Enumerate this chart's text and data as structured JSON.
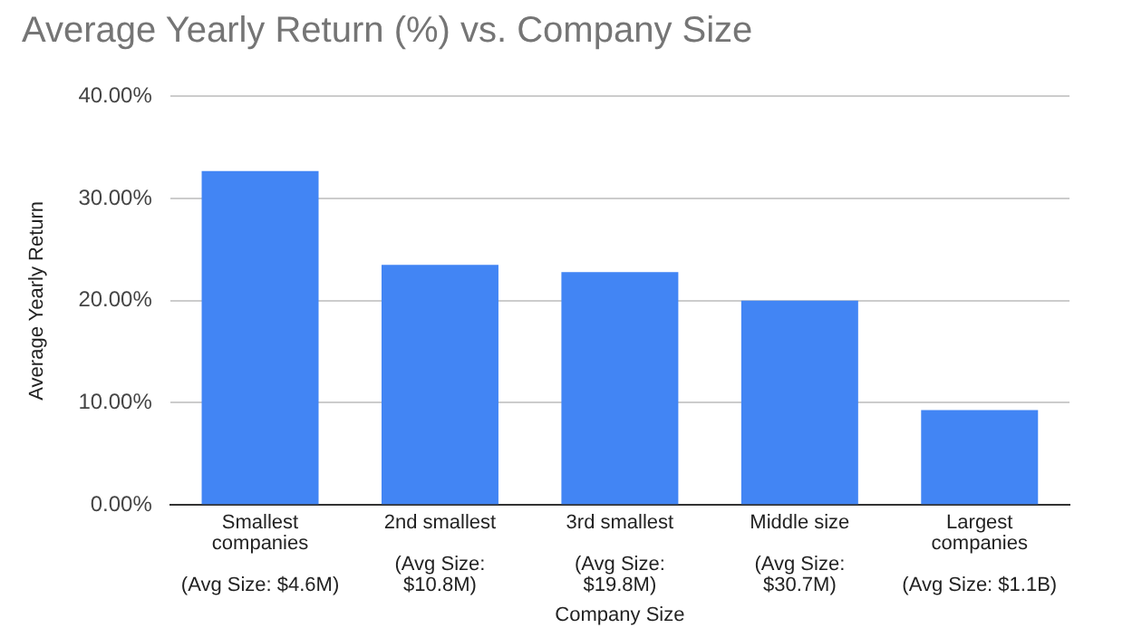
{
  "chart_data": {
    "type": "bar",
    "title": "Average Yearly Return (%) vs. Company Size",
    "xlabel": "Company Size",
    "ylabel": "Average Yearly Return",
    "categories": [
      "Smallest\ncompanies\n\n(Avg Size: $4.6M)",
      "2nd smallest\n\n(Avg Size:\n$10.8M)",
      "3rd smallest\n\n(Avg Size:\n$19.8M)",
      "Middle size\n\n(Avg Size:\n$30.7M)",
      "Largest\ncompanies\n\n(Avg Size: $1.1B)"
    ],
    "values": [
      32.7,
      23.5,
      22.8,
      20.0,
      9.3
    ],
    "color": "#4285f4",
    "ylim": [
      0,
      40
    ],
    "yticks": [
      {
        "value": 0,
        "label": "0.00%"
      },
      {
        "value": 10,
        "label": "10.00%"
      },
      {
        "value": 20,
        "label": "20.00%"
      },
      {
        "value": 30,
        "label": "30.00%"
      },
      {
        "value": 40,
        "label": "40.00%"
      }
    ],
    "grid": "y",
    "legend": false
  }
}
